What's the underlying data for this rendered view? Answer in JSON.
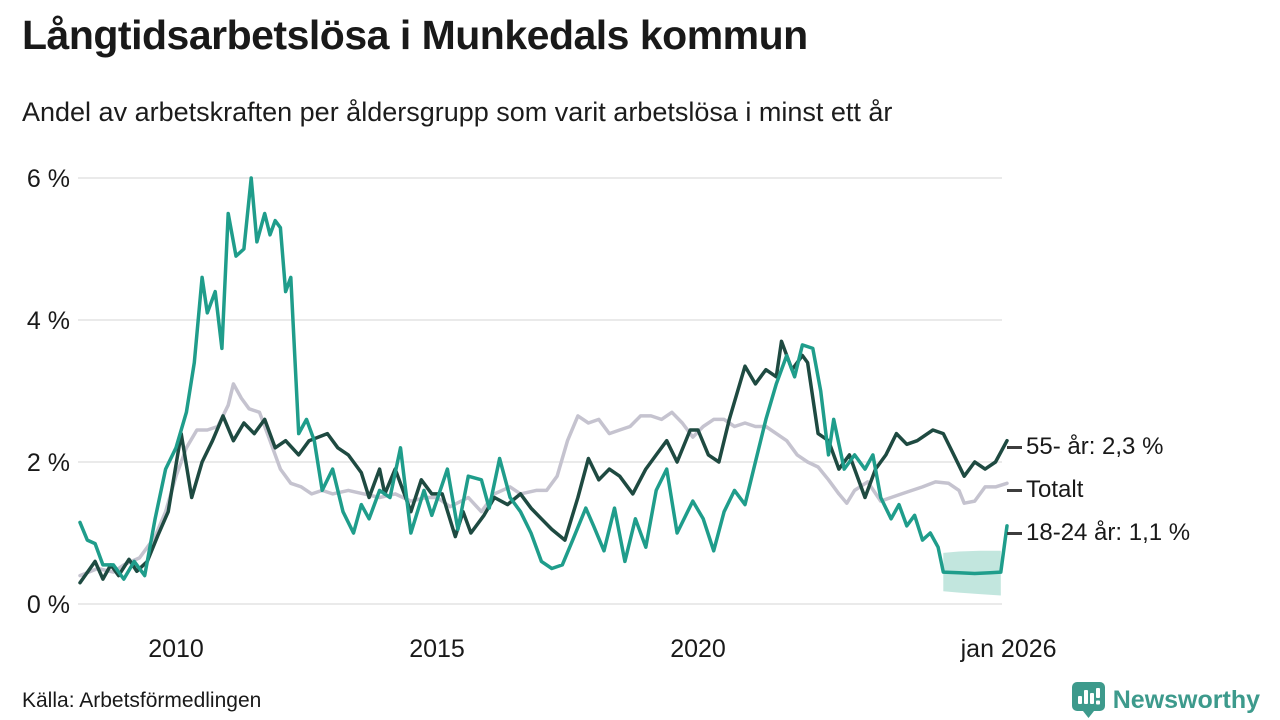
{
  "header": {
    "title": "Långtidsarbetslösa i Munkedals kommun",
    "subtitle": "Andel av arbetskraften per åldersgrupp som varit arbetslösa i minst ett år"
  },
  "footer": {
    "source": "Källa: Arbetsförmedlingen",
    "brand": "Newsworthy"
  },
  "colors": {
    "teal": "#1f9d8b",
    "dark_green": "#1e4a41",
    "gray": "#c5c3cf",
    "band": "#8fd2c3",
    "grid": "#e3e3e3",
    "text": "#191919",
    "connector": "#3d3d3d",
    "brand_teal": "#3d9a8c"
  },
  "chart_data": {
    "type": "line",
    "title": "Långtidsarbetslösa i Munkedals kommun",
    "subtitle": "Andel av arbetskraften per åldersgrupp som varit arbetslösa i minst ett år",
    "grid": "horizontal",
    "legend_position": "right-end-labels",
    "xlim": [
      2008.16,
      2026.0
    ],
    "ylim": [
      0,
      6.35
    ],
    "y_ticks": [
      {
        "label": "0 %",
        "value": 0
      },
      {
        "label": "2 %",
        "value": 2
      },
      {
        "label": "4 %",
        "value": 4
      },
      {
        "label": "6 %",
        "value": 6
      }
    ],
    "x_ticks": [
      {
        "label": "2010",
        "year": 2010
      },
      {
        "label": "2015",
        "year": 2015
      },
      {
        "label": "2020",
        "year": 2020
      },
      {
        "label": "jan 2026",
        "year": 2025.95
      }
    ],
    "series": [
      {
        "name": "Totalt",
        "end_label": "Totalt",
        "color_key": "gray",
        "points": [
          [
            2008.16,
            0.4
          ],
          [
            2008.5,
            0.5
          ],
          [
            2008.8,
            0.45
          ],
          [
            2009.0,
            0.55
          ],
          [
            2009.3,
            0.65
          ],
          [
            2009.6,
            0.95
          ],
          [
            2009.8,
            1.3
          ],
          [
            2010.0,
            1.8
          ],
          [
            2010.2,
            2.2
          ],
          [
            2010.4,
            2.45
          ],
          [
            2010.6,
            2.45
          ],
          [
            2010.8,
            2.5
          ],
          [
            2011.0,
            2.8
          ],
          [
            2011.1,
            3.1
          ],
          [
            2011.25,
            2.9
          ],
          [
            2011.4,
            2.75
          ],
          [
            2011.6,
            2.7
          ],
          [
            2011.8,
            2.3
          ],
          [
            2012.0,
            1.9
          ],
          [
            2012.2,
            1.7
          ],
          [
            2012.4,
            1.65
          ],
          [
            2012.6,
            1.55
          ],
          [
            2012.8,
            1.6
          ],
          [
            2013.0,
            1.55
          ],
          [
            2013.3,
            1.6
          ],
          [
            2013.6,
            1.55
          ],
          [
            2013.9,
            1.5
          ],
          [
            2014.2,
            1.55
          ],
          [
            2014.5,
            1.45
          ],
          [
            2014.8,
            1.5
          ],
          [
            2015.0,
            1.5
          ],
          [
            2015.25,
            1.37
          ],
          [
            2015.6,
            1.5
          ],
          [
            2015.85,
            1.3
          ],
          [
            2016.1,
            1.55
          ],
          [
            2016.4,
            1.65
          ],
          [
            2016.6,
            1.55
          ],
          [
            2016.9,
            1.6
          ],
          [
            2017.1,
            1.6
          ],
          [
            2017.3,
            1.8
          ],
          [
            2017.5,
            2.3
          ],
          [
            2017.7,
            2.65
          ],
          [
            2017.9,
            2.55
          ],
          [
            2018.1,
            2.6
          ],
          [
            2018.3,
            2.4
          ],
          [
            2018.5,
            2.45
          ],
          [
            2018.7,
            2.5
          ],
          [
            2018.9,
            2.65
          ],
          [
            2019.1,
            2.65
          ],
          [
            2019.3,
            2.6
          ],
          [
            2019.5,
            2.7
          ],
          [
            2019.7,
            2.55
          ],
          [
            2019.9,
            2.35
          ],
          [
            2020.1,
            2.5
          ],
          [
            2020.3,
            2.6
          ],
          [
            2020.5,
            2.6
          ],
          [
            2020.7,
            2.5
          ],
          [
            2020.9,
            2.55
          ],
          [
            2021.1,
            2.5
          ],
          [
            2021.3,
            2.5
          ],
          [
            2021.5,
            2.4
          ],
          [
            2021.7,
            2.3
          ],
          [
            2021.9,
            2.1
          ],
          [
            2022.1,
            2.0
          ],
          [
            2022.3,
            1.93
          ],
          [
            2022.5,
            1.75
          ],
          [
            2022.7,
            1.55
          ],
          [
            2022.85,
            1.42
          ],
          [
            2023.0,
            1.6
          ],
          [
            2023.25,
            1.72
          ],
          [
            2023.5,
            1.45
          ],
          [
            2023.7,
            1.5
          ],
          [
            2023.9,
            1.55
          ],
          [
            2024.1,
            1.6
          ],
          [
            2024.3,
            1.65
          ],
          [
            2024.55,
            1.72
          ],
          [
            2024.8,
            1.7
          ],
          [
            2025.0,
            1.6
          ],
          [
            2025.1,
            1.42
          ],
          [
            2025.3,
            1.45
          ],
          [
            2025.5,
            1.65
          ],
          [
            2025.7,
            1.65
          ],
          [
            2025.92,
            1.7
          ]
        ]
      },
      {
        "name": "55- år",
        "end_label": "55- år: 2,3 %",
        "end_value": "2,3 %",
        "color_key": "dark_green",
        "points": [
          [
            2008.16,
            0.3
          ],
          [
            2008.45,
            0.6
          ],
          [
            2008.6,
            0.35
          ],
          [
            2008.75,
            0.55
          ],
          [
            2008.9,
            0.4
          ],
          [
            2009.1,
            0.63
          ],
          [
            2009.25,
            0.46
          ],
          [
            2009.45,
            0.6
          ],
          [
            2009.65,
            0.96
          ],
          [
            2009.85,
            1.3
          ],
          [
            2010.1,
            2.4
          ],
          [
            2010.3,
            1.5
          ],
          [
            2010.5,
            2.0
          ],
          [
            2010.7,
            2.3
          ],
          [
            2010.9,
            2.65
          ],
          [
            2011.1,
            2.3
          ],
          [
            2011.3,
            2.55
          ],
          [
            2011.5,
            2.4
          ],
          [
            2011.7,
            2.6
          ],
          [
            2011.9,
            2.2
          ],
          [
            2012.1,
            2.3
          ],
          [
            2012.35,
            2.1
          ],
          [
            2012.55,
            2.3
          ],
          [
            2012.9,
            2.4
          ],
          [
            2013.1,
            2.2
          ],
          [
            2013.3,
            2.1
          ],
          [
            2013.55,
            1.85
          ],
          [
            2013.7,
            1.5
          ],
          [
            2013.9,
            1.9
          ],
          [
            2014.0,
            1.55
          ],
          [
            2014.2,
            1.9
          ],
          [
            2014.5,
            1.3
          ],
          [
            2014.7,
            1.75
          ],
          [
            2014.9,
            1.55
          ],
          [
            2015.1,
            1.55
          ],
          [
            2015.35,
            0.95
          ],
          [
            2015.5,
            1.3
          ],
          [
            2015.65,
            1.0
          ],
          [
            2015.9,
            1.25
          ],
          [
            2016.1,
            1.5
          ],
          [
            2016.35,
            1.4
          ],
          [
            2016.6,
            1.55
          ],
          [
            2016.8,
            1.35
          ],
          [
            2017.0,
            1.2
          ],
          [
            2017.2,
            1.05
          ],
          [
            2017.45,
            0.9
          ],
          [
            2017.7,
            1.5
          ],
          [
            2017.9,
            2.05
          ],
          [
            2018.1,
            1.75
          ],
          [
            2018.3,
            1.9
          ],
          [
            2018.5,
            1.8
          ],
          [
            2018.75,
            1.55
          ],
          [
            2019.0,
            1.9
          ],
          [
            2019.2,
            2.1
          ],
          [
            2019.4,
            2.3
          ],
          [
            2019.6,
            2.0
          ],
          [
            2019.85,
            2.45
          ],
          [
            2020.0,
            2.45
          ],
          [
            2020.2,
            2.1
          ],
          [
            2020.4,
            2.0
          ],
          [
            2020.6,
            2.6
          ],
          [
            2020.9,
            3.35
          ],
          [
            2021.1,
            3.1
          ],
          [
            2021.3,
            3.3
          ],
          [
            2021.5,
            3.2
          ],
          [
            2021.6,
            3.7
          ],
          [
            2021.8,
            3.3
          ],
          [
            2022.0,
            3.5
          ],
          [
            2022.1,
            3.4
          ],
          [
            2022.3,
            2.4
          ],
          [
            2022.5,
            2.3
          ],
          [
            2022.7,
            1.9
          ],
          [
            2022.9,
            2.1
          ],
          [
            2023.2,
            1.5
          ],
          [
            2023.4,
            1.9
          ],
          [
            2023.6,
            2.1
          ],
          [
            2023.8,
            2.4
          ],
          [
            2024.0,
            2.25
          ],
          [
            2024.2,
            2.3
          ],
          [
            2024.5,
            2.45
          ],
          [
            2024.7,
            2.4
          ],
          [
            2024.9,
            2.1
          ],
          [
            2025.1,
            1.8
          ],
          [
            2025.3,
            2.0
          ],
          [
            2025.5,
            1.9
          ],
          [
            2025.7,
            2.0
          ],
          [
            2025.92,
            2.3
          ]
        ]
      },
      {
        "name": "18-24 år",
        "end_label": "18-24 år: 1,1 %",
        "end_value": "1,1 %",
        "color_key": "teal",
        "points": [
          [
            2008.16,
            1.15
          ],
          [
            2008.3,
            0.9
          ],
          [
            2008.45,
            0.85
          ],
          [
            2008.6,
            0.55
          ],
          [
            2008.8,
            0.55
          ],
          [
            2009.0,
            0.35
          ],
          [
            2009.2,
            0.6
          ],
          [
            2009.4,
            0.4
          ],
          [
            2009.6,
            1.2
          ],
          [
            2009.8,
            1.9
          ],
          [
            2010.0,
            2.2
          ],
          [
            2010.2,
            2.7
          ],
          [
            2010.35,
            3.4
          ],
          [
            2010.5,
            4.6
          ],
          [
            2010.6,
            4.1
          ],
          [
            2010.75,
            4.4
          ],
          [
            2010.88,
            3.6
          ],
          [
            2011.0,
            5.5
          ],
          [
            2011.15,
            4.9
          ],
          [
            2011.3,
            5.0
          ],
          [
            2011.44,
            6.0
          ],
          [
            2011.55,
            5.1
          ],
          [
            2011.7,
            5.5
          ],
          [
            2011.8,
            5.2
          ],
          [
            2011.9,
            5.4
          ],
          [
            2012.0,
            5.3
          ],
          [
            2012.1,
            4.4
          ],
          [
            2012.2,
            4.6
          ],
          [
            2012.35,
            2.4
          ],
          [
            2012.5,
            2.6
          ],
          [
            2012.65,
            2.3
          ],
          [
            2012.8,
            1.6
          ],
          [
            2013.0,
            1.9
          ],
          [
            2013.2,
            1.3
          ],
          [
            2013.4,
            1.0
          ],
          [
            2013.55,
            1.4
          ],
          [
            2013.7,
            1.2
          ],
          [
            2013.9,
            1.6
          ],
          [
            2014.1,
            1.5
          ],
          [
            2014.3,
            2.2
          ],
          [
            2014.5,
            1.0
          ],
          [
            2014.75,
            1.6
          ],
          [
            2014.9,
            1.25
          ],
          [
            2015.2,
            1.9
          ],
          [
            2015.4,
            1.05
          ],
          [
            2015.6,
            1.8
          ],
          [
            2015.85,
            1.75
          ],
          [
            2016.0,
            1.35
          ],
          [
            2016.2,
            2.05
          ],
          [
            2016.4,
            1.5
          ],
          [
            2016.6,
            1.3
          ],
          [
            2016.8,
            1.0
          ],
          [
            2017.0,
            0.6
          ],
          [
            2017.2,
            0.5
          ],
          [
            2017.4,
            0.55
          ],
          [
            2017.6,
            0.9
          ],
          [
            2017.85,
            1.35
          ],
          [
            2018.0,
            1.1
          ],
          [
            2018.2,
            0.75
          ],
          [
            2018.4,
            1.35
          ],
          [
            2018.6,
            0.6
          ],
          [
            2018.8,
            1.2
          ],
          [
            2019.0,
            0.8
          ],
          [
            2019.2,
            1.6
          ],
          [
            2019.4,
            1.9
          ],
          [
            2019.6,
            1.0
          ],
          [
            2019.9,
            1.45
          ],
          [
            2020.1,
            1.2
          ],
          [
            2020.3,
            0.75
          ],
          [
            2020.5,
            1.3
          ],
          [
            2020.7,
            1.6
          ],
          [
            2020.9,
            1.4
          ],
          [
            2021.1,
            2.0
          ],
          [
            2021.3,
            2.6
          ],
          [
            2021.5,
            3.1
          ],
          [
            2021.7,
            3.5
          ],
          [
            2021.85,
            3.2
          ],
          [
            2022.0,
            3.65
          ],
          [
            2022.2,
            3.6
          ],
          [
            2022.35,
            3.0
          ],
          [
            2022.5,
            2.1
          ],
          [
            2022.6,
            2.6
          ],
          [
            2022.8,
            1.9
          ],
          [
            2023.0,
            2.1
          ],
          [
            2023.2,
            1.9
          ],
          [
            2023.35,
            2.1
          ],
          [
            2023.5,
            1.5
          ],
          [
            2023.7,
            1.2
          ],
          [
            2023.85,
            1.4
          ],
          [
            2024.0,
            1.1
          ],
          [
            2024.15,
            1.25
          ],
          [
            2024.3,
            0.9
          ],
          [
            2024.45,
            1.0
          ],
          [
            2024.6,
            0.8
          ],
          [
            2024.7,
            0.45
          ],
          [
            2025.0,
            0.44
          ],
          [
            2025.3,
            0.43
          ],
          [
            2025.6,
            0.44
          ],
          [
            2025.8,
            0.45
          ],
          [
            2025.92,
            1.1
          ]
        ],
        "band": {
          "upper": [
            [
              2024.7,
              0.72
            ],
            [
              2025.0,
              0.74
            ],
            [
              2025.4,
              0.75
            ],
            [
              2025.8,
              0.75
            ]
          ],
          "lower": [
            [
              2024.7,
              0.18
            ],
            [
              2025.0,
              0.16
            ],
            [
              2025.4,
              0.14
            ],
            [
              2025.8,
              0.12
            ]
          ]
        }
      }
    ]
  }
}
